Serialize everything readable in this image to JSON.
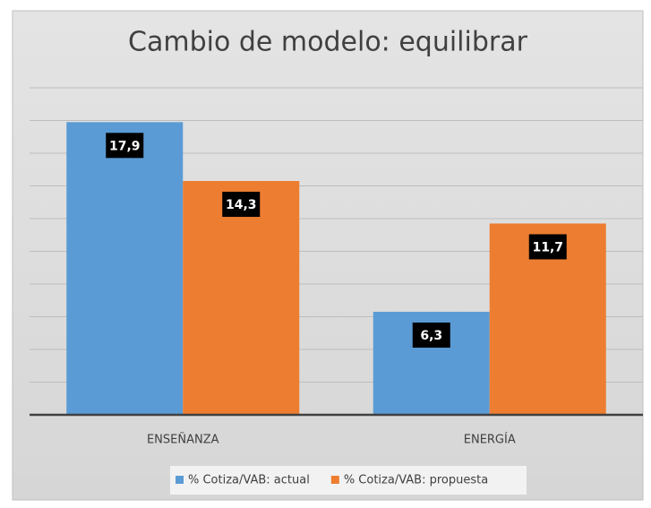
{
  "chart_data": {
    "type": "bar",
    "title": "Cambio de modelo: equilibrar",
    "categories": [
      "ENSEÑANZA",
      "ENERGÍA"
    ],
    "series": [
      {
        "name": "% Cotiza/VAB: actual",
        "color": "#5b9bd5",
        "values": [
          17.9,
          6.3
        ],
        "value_labels": [
          "17,9",
          "6,3"
        ]
      },
      {
        "name": "% Cotiza/VAB: propuesta",
        "color": "#ed7d31",
        "values": [
          14.3,
          11.7
        ],
        "value_labels": [
          "14,3",
          "11,7"
        ]
      }
    ],
    "ylim": [
      0,
      20
    ],
    "yticks": [
      0,
      2,
      4,
      6,
      8,
      10,
      12,
      14,
      16,
      18,
      20
    ],
    "grid": true,
    "legend": "bottom"
  }
}
